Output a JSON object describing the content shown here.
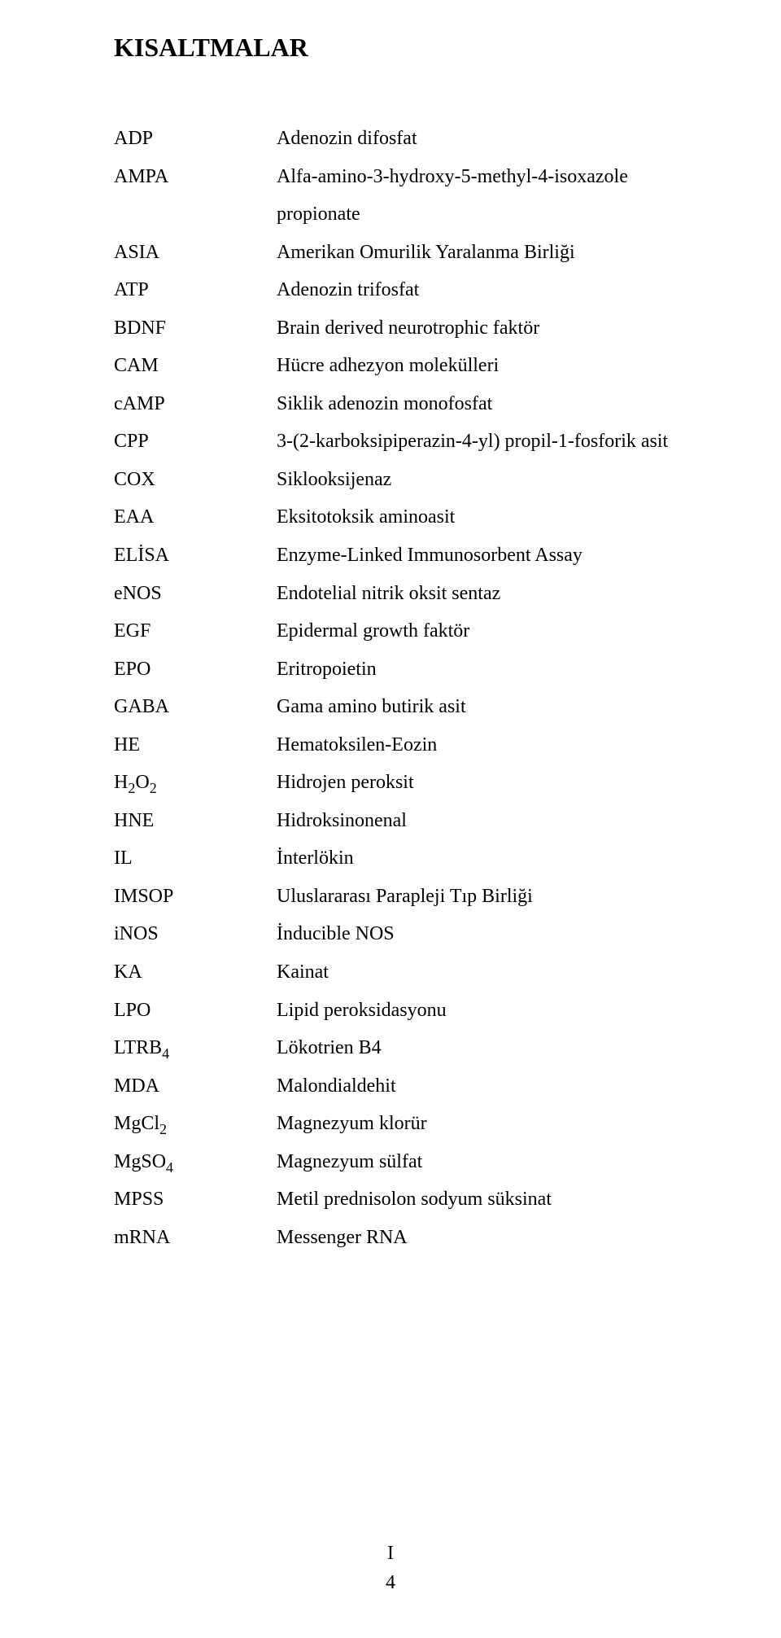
{
  "title": "KISALTMALAR",
  "rows": [
    {
      "abbr": "ADP",
      "def": "Adenozin difosfat"
    },
    {
      "abbr": "AMPA",
      "def": "Alfa-amino-3-hydroxy-5-methyl-4-isoxazole propionate"
    },
    {
      "abbr": "ASIA",
      "def": "Amerikan Omurilik Yaralanma Birliği"
    },
    {
      "abbr": "ATP",
      "def": "Adenozin trifosfat"
    },
    {
      "abbr": "BDNF",
      "def": "Brain derived neurotrophic faktör"
    },
    {
      "abbr": "CAM",
      "def": "Hücre adhezyon molekülleri"
    },
    {
      "abbr": "cAMP",
      "def": "Siklik adenozin monofosfat"
    },
    {
      "abbr": "CPP",
      "def": "3-(2-karboksipiperazin-4-yl) propil-1-fosforik asit"
    },
    {
      "abbr": "COX",
      "def": "Siklooksijenaz"
    },
    {
      "abbr": "EAA",
      "def": "Eksitotoksik aminoasit"
    },
    {
      "abbr": "ELİSA",
      "def": "Enzyme-Linked Immunosorbent Assay"
    },
    {
      "abbr": "eNOS",
      "def": "Endotelial nitrik oksit sentaz"
    },
    {
      "abbr": "EGF",
      "def": "Epidermal growth faktör"
    },
    {
      "abbr": "EPO",
      "def": "Eritropoietin"
    },
    {
      "abbr": "GABA",
      "def": "Gama amino butirik asit"
    },
    {
      "abbr": "HE",
      "def": "Hematoksilen-Eozin"
    },
    {
      "abbr_html": "H<span class=\"sub\">2</span>O<span class=\"sub\">2</span>",
      "def": "Hidrojen peroksit"
    },
    {
      "abbr": "HNE",
      "def": "Hidroksinonenal"
    },
    {
      "abbr": "IL",
      "def": "İnterlökin"
    },
    {
      "abbr": "IMSOP",
      "def": "Uluslararası Parapleji Tıp Birliği"
    },
    {
      "abbr": "iNOS",
      "def": "İnducible NOS"
    },
    {
      "abbr": "KA",
      "def": "Kainat"
    },
    {
      "abbr": "LPO",
      "def": "Lipid peroksidasyonu"
    },
    {
      "abbr_html": "LTRB<span class=\"sub\">4</span>",
      "def": "Lökotrien B4"
    },
    {
      "abbr": "MDA",
      "def": "Malondialdehit"
    },
    {
      "abbr_html": "MgCl<span class=\"sub\">2</span>",
      "def": "Magnezyum klorür"
    },
    {
      "abbr_html": "MgSO<span class=\"sub\">4</span>",
      "def": "Magnezyum sülfat"
    },
    {
      "abbr": "MPSS",
      "def": "Metil prednisolon sodyum süksinat"
    },
    {
      "abbr": "mRNA",
      "def": "Messenger RNA"
    }
  ],
  "footer": {
    "roman": "I",
    "page": "4"
  }
}
